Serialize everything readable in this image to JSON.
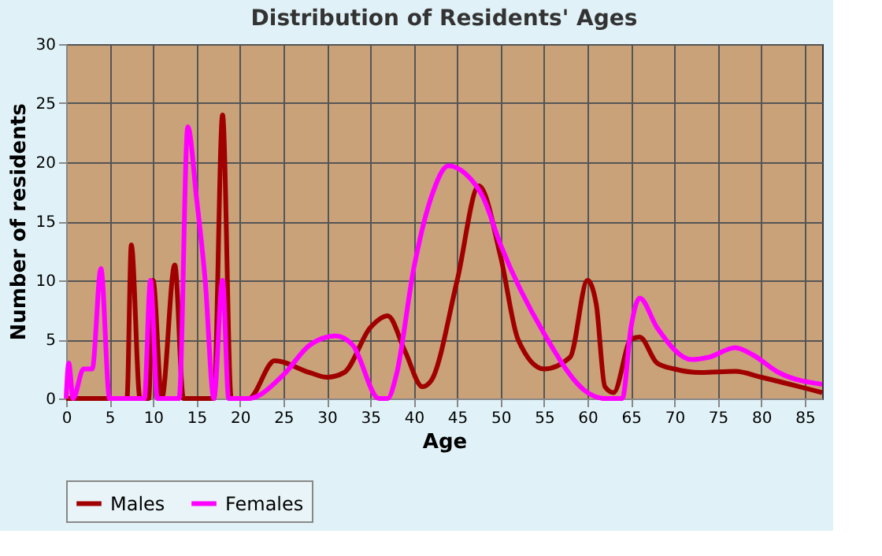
{
  "chart_data": {
    "type": "line",
    "title": "Distribution of Residents' Ages",
    "xlabel": "Age",
    "ylabel": "Number of residents",
    "xlim": [
      0,
      87
    ],
    "xticks": [
      0,
      5,
      10,
      15,
      20,
      25,
      30,
      35,
      40,
      45,
      50,
      55,
      60,
      65,
      70,
      75,
      80,
      85
    ],
    "ylim": [
      0,
      30
    ],
    "yticks": [
      0,
      5,
      10,
      15,
      20,
      25,
      30
    ],
    "grid": true,
    "legend": "bottom",
    "line_style": "solid",
    "marker": "none",
    "series": [
      {
        "name": "Males",
        "color": "#a00000",
        "x": [
          0,
          7,
          7.5,
          8.5,
          9.5,
          10,
          11,
          12.5,
          13.5,
          17,
          18,
          19,
          21,
          24,
          28,
          30,
          32,
          35,
          37,
          39,
          41,
          42,
          45,
          47.5,
          50,
          52,
          55,
          58,
          60,
          61,
          62,
          63,
          65,
          66,
          68,
          70,
          73,
          77,
          80,
          87
        ],
        "values": [
          0,
          0,
          13,
          0,
          0,
          10,
          0,
          11.3,
          0,
          0,
          24,
          0,
          0,
          3.2,
          2.2,
          1.8,
          2.2,
          6,
          7,
          4,
          1,
          1.5,
          10,
          18,
          12,
          5,
          2.5,
          3.5,
          10,
          8,
          1,
          0.5,
          5,
          5.2,
          3,
          2.5,
          2.2,
          2.3,
          1.8,
          0.5
        ]
      },
      {
        "name": "Females",
        "color": "#ff00ff",
        "x": [
          0,
          0.3,
          0.8,
          2,
          3,
          4,
          5,
          9,
          9.7,
          10.5,
          13,
          14,
          15,
          16,
          17,
          18,
          18.7,
          21,
          25,
          28,
          31,
          33,
          36,
          37,
          38,
          40,
          42,
          44,
          46,
          48,
          50,
          55,
          60,
          62,
          64,
          65,
          66,
          68,
          72,
          74,
          77,
          79,
          82,
          87
        ],
        "values": [
          0,
          3,
          0,
          2.5,
          2.5,
          11,
          0,
          0,
          10,
          0,
          0,
          23,
          17,
          10,
          0,
          10,
          0,
          0,
          2,
          4.5,
          5.3,
          4.5,
          0,
          0,
          2,
          11,
          17,
          19.7,
          19,
          17,
          13,
          5.5,
          0.5,
          0,
          0,
          6,
          8.5,
          6,
          3.3,
          3.5,
          4.3,
          3.7,
          2.2,
          1.2
        ]
      }
    ]
  }
}
